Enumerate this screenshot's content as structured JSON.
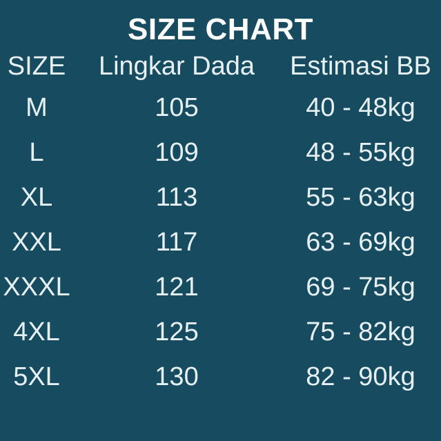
{
  "title": "SIZE CHART",
  "colors": {
    "background": "#164b60",
    "title_text": "#ffffff",
    "body_text": "#e7f1f4"
  },
  "chart_data": {
    "type": "table",
    "title": "SIZE CHART",
    "columns": [
      "SIZE",
      "Lingkar Dada",
      "Estimasi BB"
    ],
    "rows": [
      [
        "M",
        "105",
        "40 - 48kg"
      ],
      [
        "L",
        "109",
        "48 - 55kg"
      ],
      [
        "XL",
        "113",
        "55 - 63kg"
      ],
      [
        "XXL",
        "117",
        "63 - 69kg"
      ],
      [
        "XXXL",
        "121",
        "69 - 75kg"
      ],
      [
        "4XL",
        "125",
        "75 - 82kg"
      ],
      [
        "5XL",
        "130",
        "82 - 90kg"
      ]
    ]
  }
}
